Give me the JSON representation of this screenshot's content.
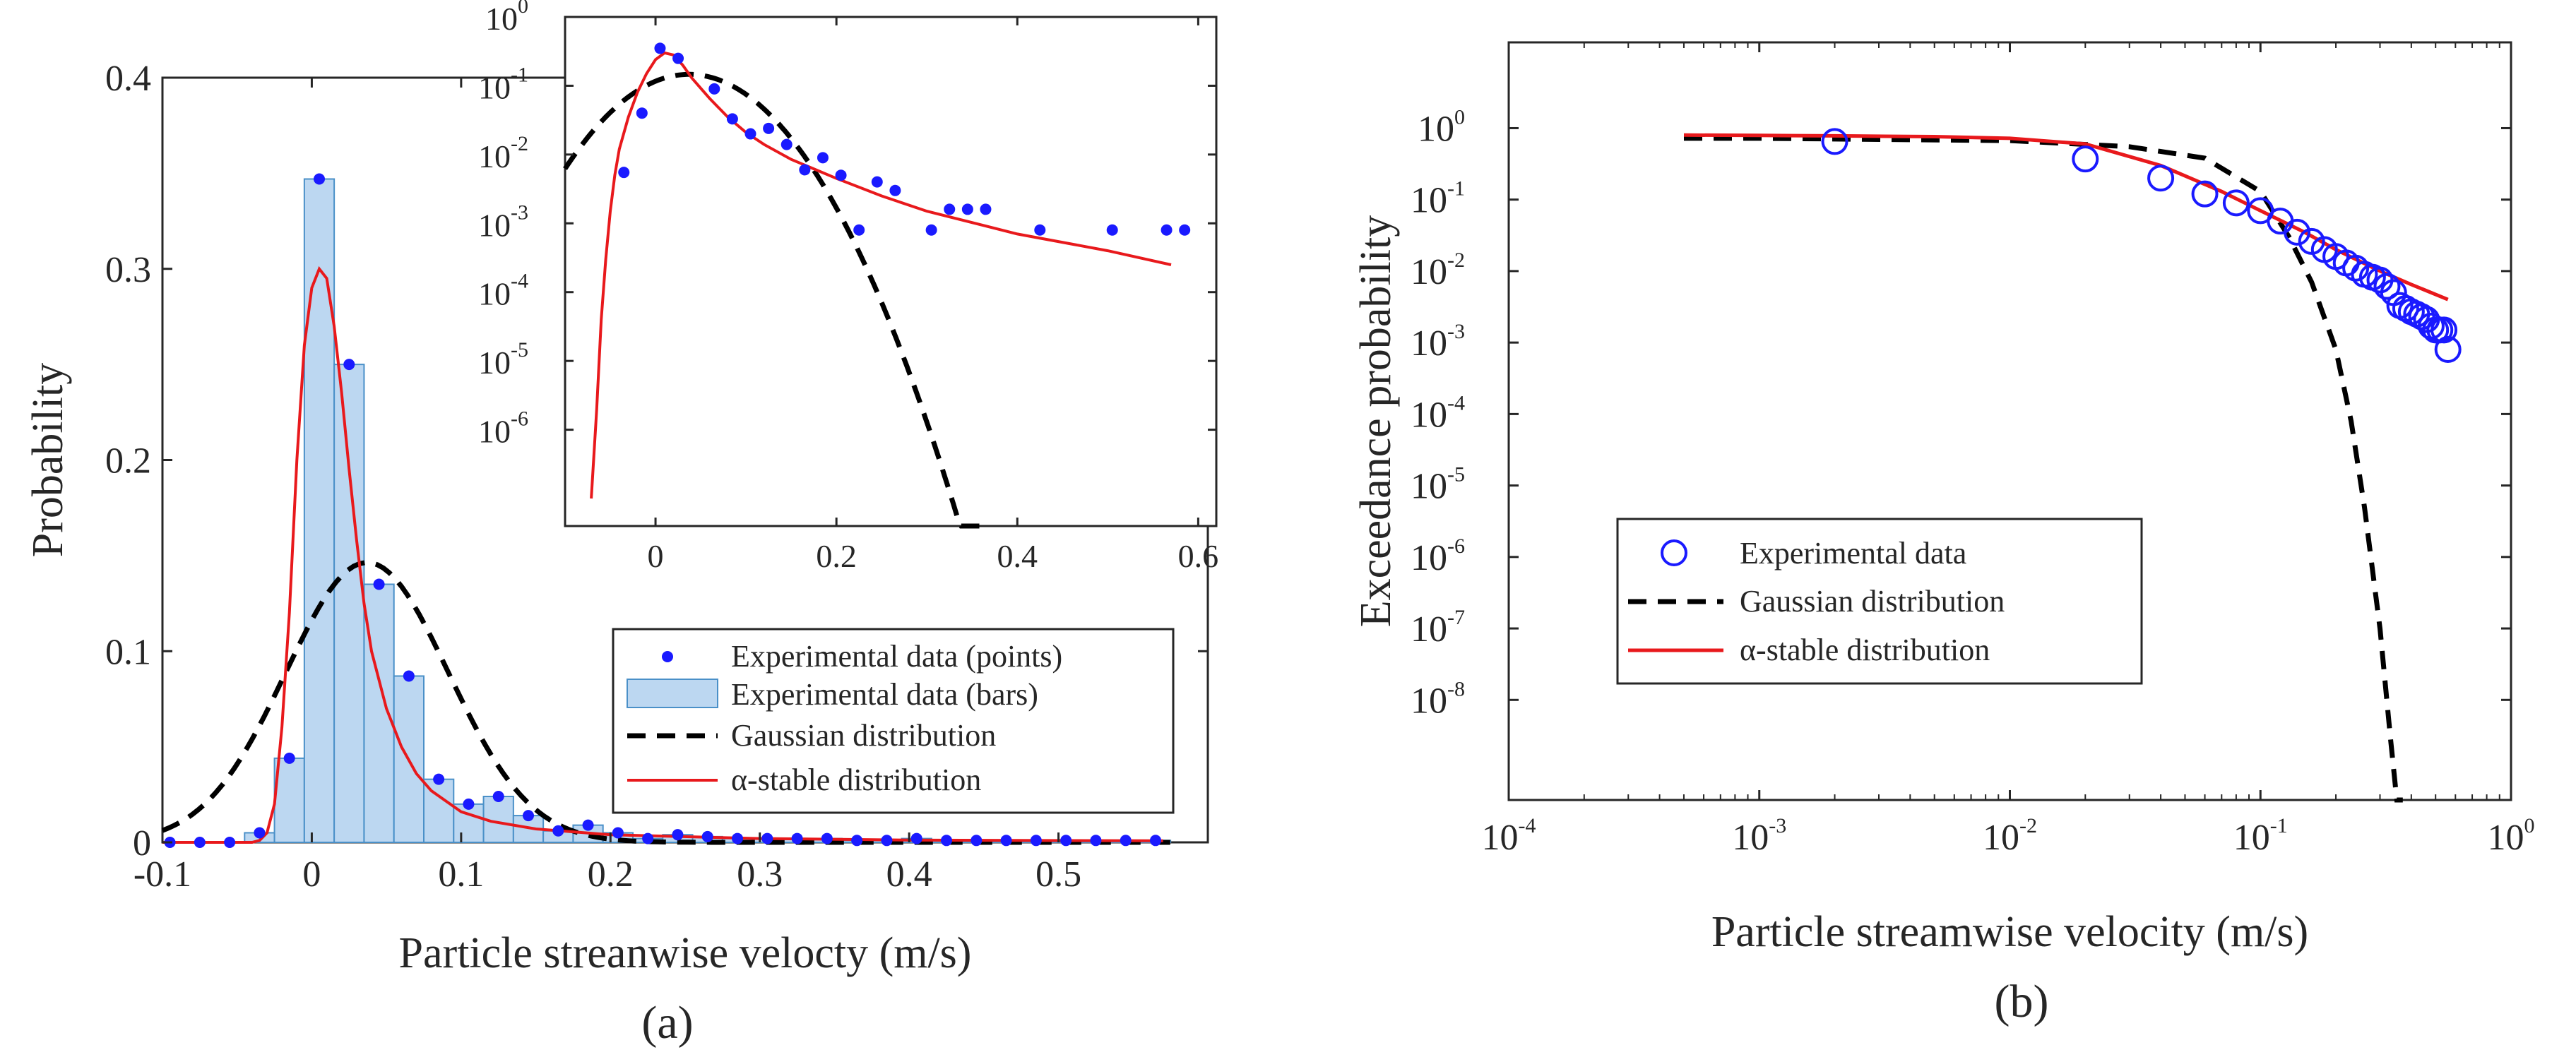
{
  "chart_data": [
    {
      "id": "a",
      "type": "bar",
      "panel_label": "(a)",
      "title": "",
      "xlabel": "Particle streanwise velocty (m/s)",
      "ylabel": "Probability",
      "xlim": [
        -0.1,
        0.6
      ],
      "ylim": [
        0,
        0.4
      ],
      "xticks": [
        -0.1,
        0,
        0.1,
        0.2,
        0.3,
        0.4,
        0.5
      ],
      "xtick_labels": [
        "-0.1",
        "0",
        "0.1",
        "0.2",
        "0.3",
        "0.4",
        "0.5"
      ],
      "yticks": [
        0,
        0.1,
        0.2,
        0.3,
        0.4
      ],
      "ytick_labels": [
        "0",
        "0.1",
        "0.2",
        "0.3",
        "0.4"
      ],
      "series": [
        {
          "name": "Experimental data (points)",
          "kind": "points",
          "color": "#1a1aff",
          "x": [
            -0.095,
            -0.075,
            -0.055,
            -0.035,
            -0.015,
            0.005,
            0.025,
            0.045,
            0.065,
            0.085,
            0.105,
            0.125,
            0.145,
            0.165,
            0.185,
            0.205,
            0.225,
            0.245,
            0.265,
            0.285,
            0.305,
            0.325,
            0.345,
            0.365,
            0.385,
            0.405,
            0.425,
            0.445,
            0.465,
            0.485,
            0.505,
            0.525,
            0.545,
            0.565
          ],
          "y": [
            0,
            0,
            0,
            0.005,
            0.044,
            0.347,
            0.25,
            0.135,
            0.087,
            0.033,
            0.02,
            0.024,
            0.014,
            0.006,
            0.009,
            0.005,
            0.002,
            0.004,
            0.003,
            0.002,
            0.002,
            0.002,
            0.002,
            0.001,
            0.001,
            0.002,
            0.001,
            0.001,
            0.001,
            0.001,
            0.001,
            0.001,
            0.001,
            0.001
          ]
        },
        {
          "name": "Experimental data (bars)",
          "kind": "bars",
          "color": "#bcd7f1",
          "edge_color": "#4a90c8",
          "bin_width": 0.02
        },
        {
          "name": "Gaussian distribution",
          "kind": "line",
          "style": "dashed",
          "color": "#000000",
          "mean": 0.037,
          "sigma": 0.0545,
          "scale": 0.02
        },
        {
          "name": "α-stable distribution",
          "kind": "line",
          "style": "solid",
          "color": "#e8191c",
          "x": [
            -0.1,
            -0.04,
            -0.035,
            -0.03,
            -0.025,
            -0.02,
            -0.015,
            -0.01,
            -0.005,
            0,
            0.005,
            0.01,
            0.015,
            0.02,
            0.025,
            0.03,
            0.035,
            0.04,
            0.05,
            0.06,
            0.07,
            0.08,
            0.1,
            0.12,
            0.15,
            0.2,
            0.3,
            0.4,
            0.57
          ],
          "y": [
            0,
            0,
            0.001,
            0.005,
            0.02,
            0.06,
            0.12,
            0.2,
            0.26,
            0.29,
            0.3,
            0.295,
            0.27,
            0.235,
            0.195,
            0.158,
            0.125,
            0.1,
            0.07,
            0.05,
            0.036,
            0.027,
            0.016,
            0.011,
            0.007,
            0.004,
            0.002,
            0.0012,
            0.0008
          ]
        }
      ],
      "legend_position": "center-right",
      "inset": {
        "type": "line",
        "scale": "log-y",
        "xlim": [
          -0.1,
          0.62
        ],
        "ylim_exp": [
          -7.4,
          0
        ],
        "xticks": [
          0,
          0.2,
          0.4,
          0.6
        ],
        "xtick_labels": [
          "0",
          "0.2",
          "0.4",
          "0.6"
        ],
        "yticks_exp": [
          0,
          -1,
          -2,
          -3,
          -4,
          -5,
          -6
        ],
        "ytick_base": "10",
        "ytick_exps": [
          "0",
          "-1",
          "-2",
          "-3",
          "-4",
          "-5",
          "-6"
        ],
        "points": {
          "x": [
            -0.035,
            -0.015,
            0.005,
            0.025,
            0.065,
            0.085,
            0.105,
            0.125,
            0.145,
            0.165,
            0.185,
            0.205,
            0.225,
            0.245,
            0.265,
            0.305,
            0.325,
            0.345,
            0.365,
            0.425,
            0.505,
            0.565,
            0.585
          ],
          "y": [
            0.0055,
            0.04,
            0.35,
            0.25,
            0.09,
            0.033,
            0.02,
            0.024,
            0.014,
            0.006,
            0.009,
            0.005,
            0.0008,
            0.004,
            0.003,
            0.0008,
            0.0016,
            0.0016,
            0.0016,
            0.0008,
            0.0008,
            0.0008,
            0.0008
          ]
        },
        "alpha_stable": {
          "x": [
            -0.071,
            -0.065,
            -0.06,
            -0.055,
            -0.05,
            -0.045,
            -0.04,
            -0.03,
            -0.02,
            -0.01,
            0,
            0.01,
            0.02,
            0.03,
            0.04,
            0.06,
            0.08,
            0.1,
            0.12,
            0.15,
            0.2,
            0.25,
            0.3,
            0.4,
            0.5,
            0.57
          ],
          "y": [
            1e-07,
            2e-06,
            4e-05,
            0.0003,
            0.0015,
            0.005,
            0.012,
            0.035,
            0.08,
            0.15,
            0.24,
            0.3,
            0.28,
            0.2,
            0.13,
            0.065,
            0.035,
            0.021,
            0.014,
            0.0085,
            0.0045,
            0.0025,
            0.0015,
            0.0007,
            0.0004,
            0.00025
          ]
        }
      }
    },
    {
      "id": "b",
      "type": "line",
      "scale": "log-log",
      "panel_label": "(b)",
      "title": "",
      "xlabel": "Particle streamwise velocity (m/s)",
      "ylabel": "Exceedance probability",
      "xlim_exp": [
        -4,
        0
      ],
      "ylim_exp": [
        -9.4,
        1.2
      ],
      "xticks_exp": [
        -4,
        -3,
        -2,
        -1,
        0
      ],
      "xtick_exps": [
        "-4",
        "-3",
        "-2",
        "-1",
        "0"
      ],
      "yticks_exp": [
        0,
        -1,
        -2,
        -3,
        -4,
        -5,
        -6,
        -7,
        -8
      ],
      "ytick_exps": [
        "0",
        "-1",
        "-2",
        "-3",
        "-4",
        "-5",
        "-6",
        "-7",
        "-8"
      ],
      "tick_base": "10",
      "series": [
        {
          "name": "Experimental data",
          "kind": "markers",
          "marker": "circle-open",
          "color": "#1a1aff",
          "x": [
            0.002,
            0.02,
            0.04,
            0.06,
            0.08,
            0.1,
            0.12,
            0.14,
            0.16,
            0.18,
            0.2,
            0.22,
            0.24,
            0.26,
            0.28,
            0.3,
            0.32,
            0.34,
            0.36,
            0.38,
            0.4,
            0.42,
            0.44,
            0.46,
            0.48,
            0.5,
            0.52,
            0.54,
            0.56
          ],
          "y": [
            0.65,
            0.37,
            0.2,
            0.12,
            0.09,
            0.07,
            0.05,
            0.035,
            0.026,
            0.02,
            0.016,
            0.013,
            0.011,
            0.009,
            0.0082,
            0.0075,
            0.0061,
            0.005,
            0.0033,
            0.003,
            0.0027,
            0.0025,
            0.0023,
            0.0021,
            0.0017,
            0.0015,
            0.0015,
            0.0015,
            0.0008
          ]
        },
        {
          "name": "Gaussian distribution",
          "kind": "line",
          "style": "dashed",
          "color": "#000000",
          "x": [
            0.0005,
            0.001,
            0.01,
            0.03,
            0.06,
            0.1,
            0.13,
            0.16,
            0.2,
            0.23,
            0.26,
            0.3,
            0.33,
            0.35,
            0.37
          ],
          "y": [
            0.72,
            0.72,
            0.67,
            0.55,
            0.38,
            0.13,
            0.03,
            0.007,
            0.0008,
            8e-05,
            5e-06,
            1e-07,
            3e-09,
            2.5e-10,
            4e-11
          ]
        },
        {
          "name": "α-stable distribution",
          "kind": "line",
          "style": "solid",
          "color": "#e8191c",
          "x": [
            0.0005,
            0.001,
            0.002,
            0.005,
            0.01,
            0.02,
            0.04,
            0.07,
            0.1,
            0.15,
            0.2,
            0.3,
            0.4,
            0.56
          ],
          "y": [
            0.8,
            0.79,
            0.78,
            0.76,
            0.72,
            0.6,
            0.3,
            0.13,
            0.07,
            0.035,
            0.02,
            0.01,
            0.0065,
            0.004
          ]
        }
      ],
      "legend_position": "center-left"
    }
  ]
}
